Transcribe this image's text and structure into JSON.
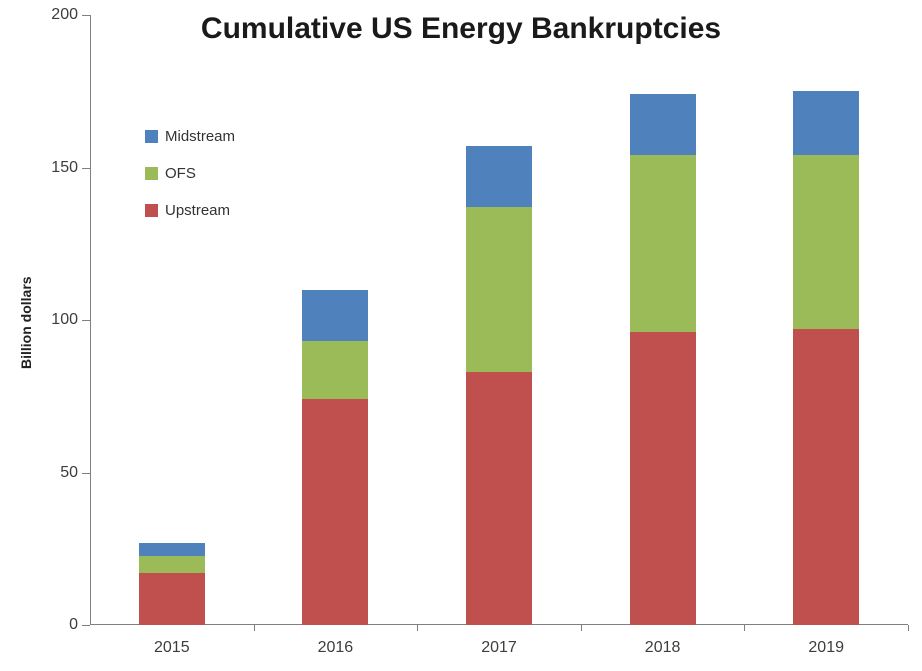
{
  "chart_data": {
    "type": "bar",
    "stacked": true,
    "title": "Cumulative US Energy Bankruptcies",
    "xlabel": "",
    "ylabel": "Billion dollars",
    "categories": [
      "2015",
      "2016",
      "2017",
      "2018",
      "2019"
    ],
    "series": [
      {
        "name": "Upstream",
        "color": "#C0504D",
        "values": [
          17,
          74,
          83,
          96,
          97
        ]
      },
      {
        "name": "OFS",
        "color": "#9BBB59",
        "values": [
          5.5,
          19,
          54,
          58,
          57
        ]
      },
      {
        "name": "Midstream",
        "color": "#4F81BD",
        "values": [
          4.5,
          17,
          20,
          20,
          21
        ]
      }
    ],
    "totals": [
      27,
      110,
      157,
      174,
      175
    ],
    "ylim": [
      0,
      200
    ],
    "yticks": [
      0,
      50,
      100,
      150,
      200
    ],
    "grid": false,
    "legend": {
      "position": "inside-top-left",
      "order": [
        "Midstream",
        "OFS",
        "Upstream"
      ]
    }
  },
  "style": {
    "axis_line_color": "#808080",
    "tick_text_color": "#3d3d3d",
    "title_color": "#1a1a1a",
    "background": "#ffffff"
  }
}
